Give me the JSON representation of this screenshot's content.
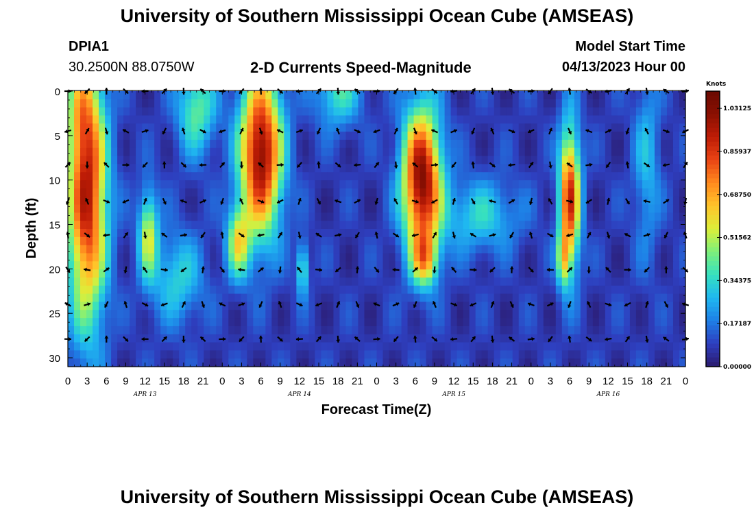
{
  "title": "University of Southern Mississippi Ocean Cube (AMSEAS)",
  "footer_title": "University of Southern Mississippi Ocean Cube (AMSEAS)",
  "station": {
    "id": "DPIA1",
    "coords": "30.2500N  88.0750W"
  },
  "model": {
    "label": "Model Start Time",
    "start": "04/13/2023 Hour 00"
  },
  "chart_data": {
    "type": "heatmap",
    "subtitle": "2-D Currents Speed-Magnitude",
    "xlabel": "Forecast Time(Z)",
    "ylabel": "Depth (ft)",
    "x_tick_labels": [
      "0",
      "3",
      "6",
      "9",
      "12",
      "15",
      "18",
      "21",
      "0",
      "3",
      "6",
      "9",
      "12",
      "15",
      "18",
      "21",
      "0",
      "3",
      "6",
      "9",
      "12",
      "15",
      "18",
      "21",
      "0",
      "3",
      "6",
      "9",
      "12",
      "15",
      "18",
      "21",
      "0"
    ],
    "x_range_hours": [
      0,
      96
    ],
    "day_labels": [
      {
        "text": "APR 13",
        "hour": 12
      },
      {
        "text": "APR 14",
        "hour": 36
      },
      {
        "text": "APR 15",
        "hour": 60
      },
      {
        "text": "APR 16",
        "hour": 84
      }
    ],
    "y_ticks": [
      0,
      5,
      10,
      15,
      20,
      25,
      30
    ],
    "y_range": [
      0,
      31
    ],
    "colorbar": {
      "title": "Knots",
      "ticks": [
        "1.03125",
        "0.85937",
        "0.68750",
        "0.51562",
        "0.34375",
        "0.17187",
        "0.00000"
      ],
      "range": [
        0,
        1.1
      ],
      "colors": [
        "#2b1a6e",
        "#2e3fbf",
        "#1e7fe6",
        "#1fb8f0",
        "#36e0c0",
        "#7ef07a",
        "#dcef3a",
        "#ffc42a",
        "#ff8a1e",
        "#ea4414",
        "#be1c06",
        "#8a1002",
        "#6a0a02"
      ]
    },
    "speed_blobs": [
      {
        "t": 3,
        "d": 12,
        "st": 3.0,
        "sd": 14,
        "v": 0.85
      },
      {
        "t": 2,
        "d": 2,
        "st": 2.5,
        "sd": 6,
        "v": 0.2
      },
      {
        "t": 12.5,
        "d": 16,
        "st": 1.5,
        "sd": 5,
        "v": 0.45
      },
      {
        "t": 30,
        "d": 7,
        "st": 3.2,
        "sd": 9,
        "v": 0.95
      },
      {
        "t": 26.5,
        "d": 17,
        "st": 1.8,
        "sd": 4,
        "v": 0.45
      },
      {
        "t": 36.5,
        "d": 20,
        "st": 0.9,
        "sd": 3,
        "v": 0.35
      },
      {
        "t": 55,
        "d": 10,
        "st": 3.0,
        "sd": 8,
        "v": 0.95
      },
      {
        "t": 55.5,
        "d": 19,
        "st": 2.0,
        "sd": 3,
        "v": 0.45
      },
      {
        "t": 78,
        "d": 12,
        "st": 1.6,
        "sd": 8,
        "v": 0.8
      },
      {
        "t": 77,
        "d": 19,
        "st": 1.0,
        "sd": 3,
        "v": 0.35
      },
      {
        "t": 42,
        "d": 0,
        "st": 3.5,
        "sd": 4,
        "v": 0.3
      },
      {
        "t": 64,
        "d": 14,
        "st": 6,
        "sd": 4,
        "v": 0.25
      },
      {
        "t": 20,
        "d": 2,
        "st": 3,
        "sd": 5,
        "v": 0.35
      },
      {
        "t": 90,
        "d": 8,
        "st": 2,
        "sd": 10,
        "v": 0.2
      },
      {
        "t": 17,
        "d": 21,
        "st": 4,
        "sd": 5,
        "v": 0.25
      }
    ],
    "vector_rows_ft": [
      0,
      4.5,
      8.3,
      12.4,
      16.2,
      20.1,
      24,
      27.9
    ],
    "vector_columns_hours": [
      0,
      3,
      6,
      9,
      12,
      15,
      18,
      21,
      24,
      27,
      30,
      33,
      36,
      39,
      42,
      45,
      48,
      51,
      54,
      57,
      60,
      63,
      66,
      69,
      72,
      75,
      78,
      81,
      84,
      87,
      90,
      93,
      96
    ]
  }
}
